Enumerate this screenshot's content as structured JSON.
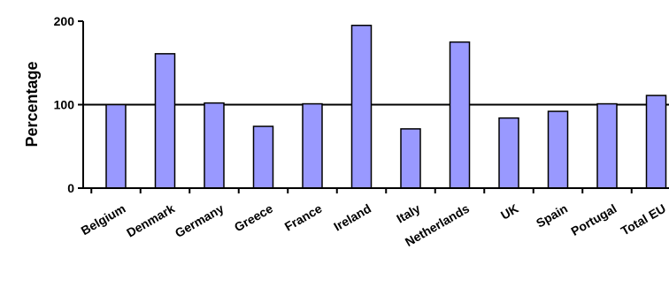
{
  "chart_data": {
    "type": "bar",
    "title": "",
    "xlabel": "",
    "ylabel": "Percentage",
    "categories": [
      "Belgium",
      "Denmark",
      "Germany",
      "Greece",
      "France",
      "Ireland",
      "Italy",
      "Netherlands",
      "UK",
      "Spain",
      "Portugal",
      "Total EU"
    ],
    "values": [
      100,
      161,
      102,
      74,
      101,
      195,
      71,
      175,
      84,
      92,
      101,
      111
    ],
    "ylim": [
      0,
      200
    ],
    "yticks": [
      0,
      100,
      200
    ],
    "ytick_labels": [
      "0",
      "100",
      "200"
    ],
    "gridlines": [
      100
    ],
    "grid": true,
    "legend": false,
    "colors": {
      "bar_fill": "#9999ff",
      "bar_stroke": "#000000",
      "axis": "#000000"
    }
  }
}
